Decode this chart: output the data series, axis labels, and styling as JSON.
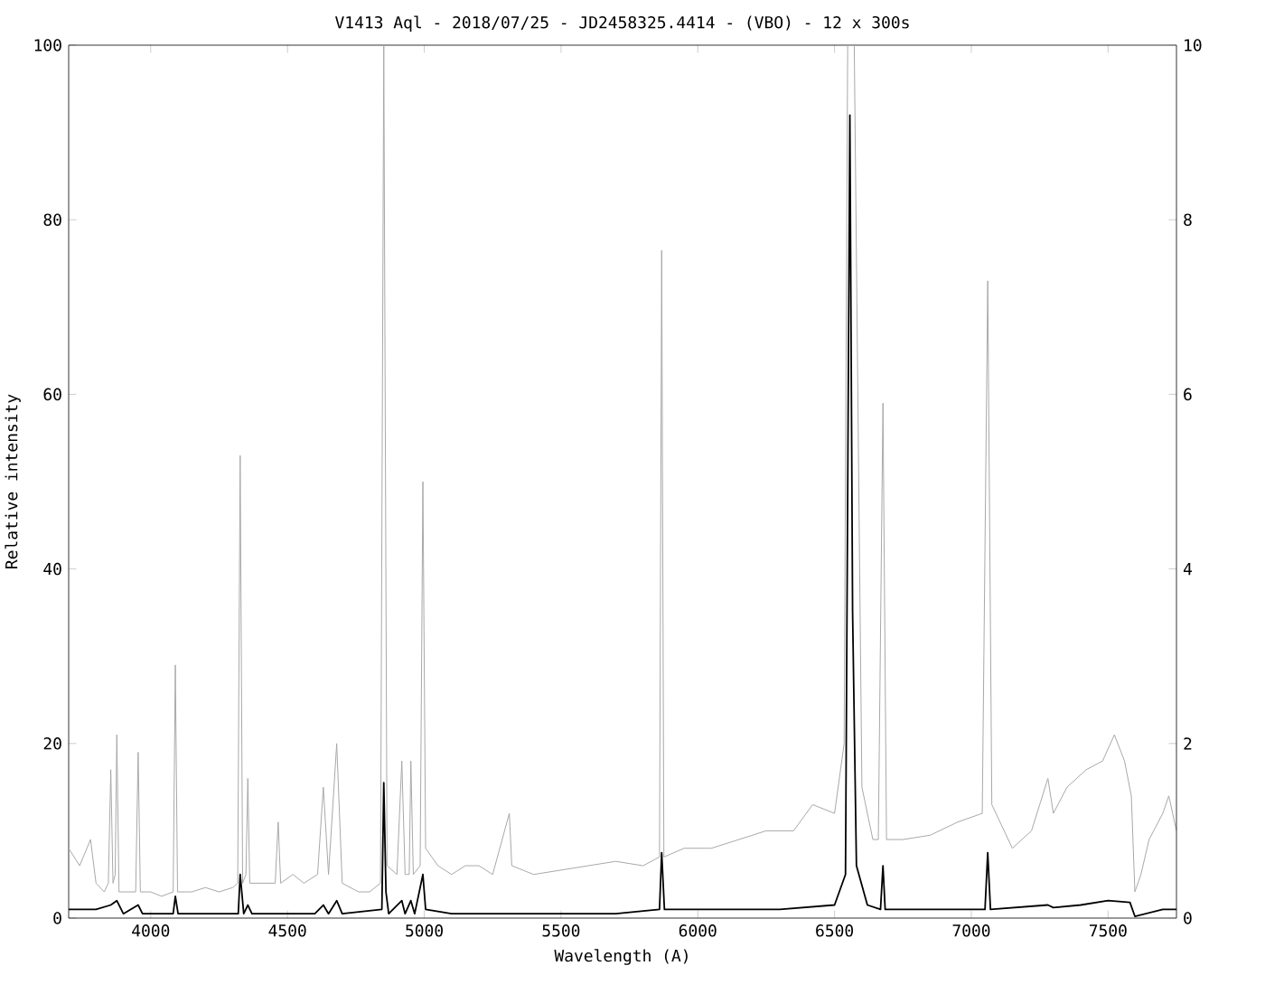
{
  "chart_data": {
    "type": "line",
    "title": "V1413 Aql - 2018/07/25 - JD2458325.4414 - (VBO) - 12 x 300s",
    "xlabel": "Wavelength (A)",
    "ylabel": "Relative intensity",
    "xlim": [
      3700,
      7750
    ],
    "xticks": [
      4000,
      4500,
      5000,
      5500,
      6000,
      6500,
      7000,
      7500
    ],
    "ylim": [
      0,
      100
    ],
    "yticks": [
      0,
      20,
      40,
      60,
      80,
      100
    ],
    "y2lim": [
      0,
      10
    ],
    "y2ticks": [
      0,
      2,
      4,
      6,
      8,
      10
    ],
    "marker": "none",
    "line_style": "solid",
    "series": [
      {
        "color": "#a8a8a8",
        "axis": "y",
        "x": [
          3700,
          3740,
          3780,
          3800,
          3830,
          3845,
          3854,
          3862,
          3870,
          3876,
          3884,
          3910,
          3945,
          3954,
          3962,
          4000,
          4040,
          4082,
          4090,
          4098,
          4150,
          4200,
          4250,
          4300,
          4318,
          4327,
          4336,
          4348,
          4355,
          4362,
          4400,
          4455,
          4466,
          4475,
          4520,
          4560,
          4610,
          4631,
          4650,
          4680,
          4700,
          4760,
          4800,
          4840,
          4852,
          4864,
          4900,
          4918,
          4930,
          4945,
          4951,
          4960,
          4985,
          4995,
          5005,
          5050,
          5100,
          5150,
          5200,
          5250,
          5311,
          5320,
          5400,
          5500,
          5600,
          5700,
          5800,
          5860,
          5868,
          5876,
          5950,
          6050,
          6150,
          6250,
          6350,
          6420,
          6500,
          6535,
          6548,
          6572,
          6600,
          6640,
          6660,
          6677,
          6690,
          6750,
          6850,
          6950,
          7040,
          7060,
          7075,
          7150,
          7220,
          7280,
          7300,
          7350,
          7420,
          7480,
          7523,
          7560,
          7585,
          7598,
          7620,
          7650,
          7700,
          7722,
          7750
        ],
        "values": [
          8,
          6,
          9,
          4,
          3,
          4,
          17,
          4,
          5,
          21,
          3,
          3,
          3,
          19,
          3,
          3,
          2.5,
          3,
          29,
          3,
          3,
          3.5,
          3,
          3.5,
          4,
          53,
          4,
          5,
          16,
          4,
          4,
          4,
          11,
          4,
          5,
          4,
          5,
          15,
          5,
          20,
          4,
          3,
          3,
          4,
          100,
          6,
          5,
          18,
          5,
          5,
          18,
          5,
          6,
          50,
          8,
          6,
          5,
          6,
          6,
          5,
          12,
          6,
          5,
          5.5,
          6,
          6.5,
          6,
          7,
          76.5,
          7,
          8,
          8,
          9,
          10,
          10,
          13,
          12,
          20,
          100,
          100,
          15,
          9,
          9,
          59,
          9,
          9,
          9.5,
          11,
          12,
          73,
          13,
          8,
          10,
          16,
          12,
          15,
          17,
          18,
          21,
          18,
          14,
          3,
          5,
          9,
          12,
          14,
          10
        ]
      },
      {
        "color": "#000000",
        "axis": "y2",
        "x": [
          3700,
          3800,
          3854,
          3876,
          3900,
          3954,
          3970,
          4082,
          4090,
          4100,
          4320,
          4327,
          4340,
          4355,
          4370,
          4600,
          4631,
          4650,
          4680,
          4700,
          4845,
          4852,
          4860,
          4870,
          4918,
          4930,
          4951,
          4965,
          4995,
          5005,
          5100,
          5400,
          5700,
          5860,
          5868,
          5878,
          6000,
          6300,
          6500,
          6540,
          6556,
          6566,
          6580,
          6620,
          6668,
          6677,
          6685,
          7050,
          7060,
          7070,
          7280,
          7300,
          7400,
          7500,
          7580,
          7598,
          7700,
          7750
        ],
        "values": [
          0.1,
          0.1,
          0.15,
          0.2,
          0.05,
          0.15,
          0.05,
          0.05,
          0.25,
          0.05,
          0.05,
          0.5,
          0.05,
          0.15,
          0.05,
          0.05,
          0.15,
          0.05,
          0.2,
          0.05,
          0.1,
          1.55,
          0.3,
          0.05,
          0.2,
          0.05,
          0.2,
          0.05,
          0.5,
          0.1,
          0.05,
          0.05,
          0.05,
          0.1,
          0.75,
          0.1,
          0.1,
          0.1,
          0.15,
          0.5,
          9.2,
          3.5,
          0.6,
          0.15,
          0.1,
          0.6,
          0.1,
          0.1,
          0.75,
          0.1,
          0.15,
          0.12,
          0.15,
          0.2,
          0.18,
          0.02,
          0.1,
          0.1
        ]
      }
    ]
  }
}
